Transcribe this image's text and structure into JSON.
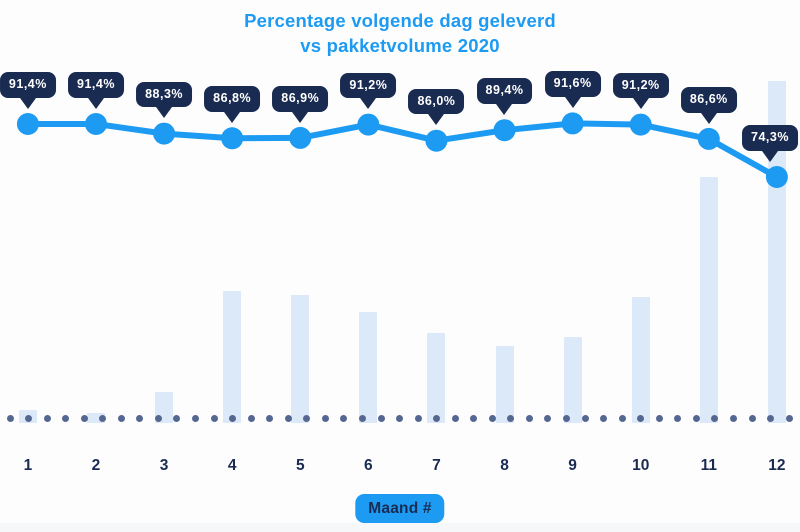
{
  "page": {
    "background": "#fdfdfe",
    "bottom_band_color": "#f6f7f9"
  },
  "colors": {
    "accent_blue": "#1d9bf2",
    "navy": "#1a2b52",
    "bar_fill": "#dbe9f8",
    "baseline_dot": "#546791",
    "tooltip_text": "#ffffff"
  },
  "title": {
    "line1": "Percentage volgende dag geleverd",
    "line2": "vs pakketvolume 2020"
  },
  "x_axis": {
    "label_badge": "Maand #",
    "tick_labels": [
      "1",
      "2",
      "3",
      "4",
      "5",
      "6",
      "7",
      "8",
      "9",
      "10",
      "11",
      "12"
    ]
  },
  "chart_data": {
    "type": "line",
    "title": "Percentage volgende dag geleverd vs pakketvolume 2020",
    "categories": [
      "1",
      "2",
      "3",
      "4",
      "5",
      "6",
      "7",
      "8",
      "9",
      "10",
      "11",
      "12"
    ],
    "xlabel": "Maand #",
    "ylabel": "",
    "grid": false,
    "legend": false,
    "baseline_style": "dotted",
    "series": [
      {
        "name": "Percentage volgende dag geleverd",
        "type": "line",
        "unit": "%",
        "values": [
          91.4,
          91.4,
          88.3,
          86.8,
          86.9,
          91.2,
          86.0,
          89.4,
          91.6,
          91.2,
          86.6,
          74.3
        ],
        "point_labels": [
          "91,4%",
          "91,4%",
          "88,3%",
          "86,8%",
          "86,9%",
          "91,2%",
          "86,0%",
          "89,4%",
          "91,6%",
          "91,2%",
          "86,6%",
          "74,3%"
        ]
      },
      {
        "name": "Pakketvolume 2020",
        "type": "bar",
        "values_pct_of_max": [
          3.8,
          2.9,
          9.1,
          38.6,
          37.4,
          32.5,
          26.3,
          22.5,
          25.1,
          36.8,
          71.9,
          100
        ]
      }
    ]
  }
}
